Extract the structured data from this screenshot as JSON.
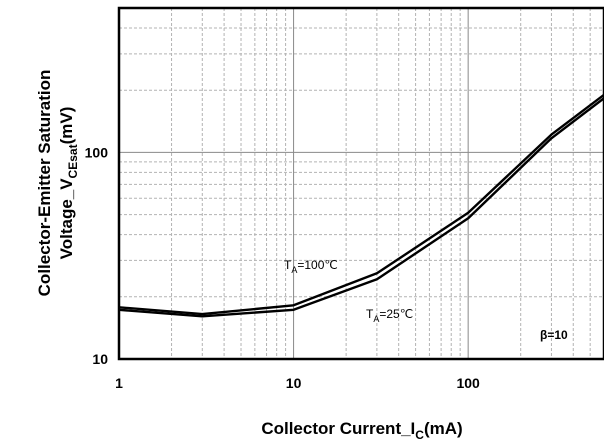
{
  "chart_data": {
    "type": "line",
    "xscale": "log",
    "yscale": "log",
    "xlim": [
      1,
      600
    ],
    "ylim": [
      10,
      500
    ],
    "grid": true,
    "x_ticks": [
      {
        "value": 1,
        "label": "1"
      },
      {
        "value": 10,
        "label": "10"
      },
      {
        "value": 100,
        "label": "100"
      }
    ],
    "y_ticks": [
      {
        "value": 10,
        "label": "10"
      },
      {
        "value": 100,
        "label": "100"
      }
    ],
    "xlabel": {
      "main": "Collector Current_I",
      "sub": "C",
      "tail": "(mA)"
    },
    "ylabel": {
      "line1": "Collector-Emitter Saturation",
      "main": "Voltage_V",
      "sub": "CEsat",
      "tail": "(mV)"
    },
    "series": [
      {
        "name": "TA=100°C",
        "color": "#000000",
        "points": [
          [
            1,
            17.8
          ],
          [
            3,
            16.5
          ],
          [
            10,
            18.2
          ],
          [
            30,
            26
          ],
          [
            100,
            51
          ],
          [
            300,
            122
          ],
          [
            600,
            190
          ]
        ]
      },
      {
        "name": "TA=25°C",
        "color": "#000000",
        "points": [
          [
            1,
            17.3
          ],
          [
            3,
            16.1
          ],
          [
            10,
            17.3
          ],
          [
            30,
            24.3
          ],
          [
            100,
            48
          ],
          [
            300,
            117
          ],
          [
            600,
            183
          ]
        ]
      }
    ],
    "annotations": [
      {
        "main": "T",
        "sub": "A",
        "tail": "=100℃"
      },
      {
        "main": "T",
        "sub": "A",
        "tail": "=25℃"
      },
      {
        "text": "β=10"
      }
    ]
  }
}
